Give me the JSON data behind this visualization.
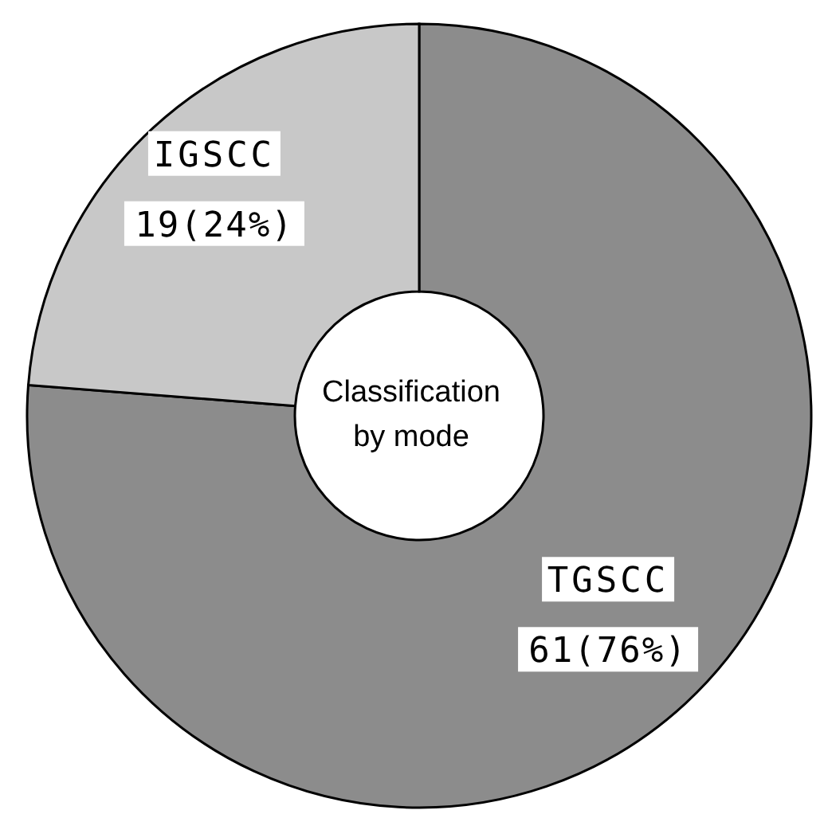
{
  "chart_data": {
    "type": "donut",
    "title": "Classification by mode",
    "categories": [
      "TGSCC",
      "IGSCC"
    ],
    "values": [
      61,
      19
    ],
    "value_labels": [
      "61(76%)",
      "19(24%)"
    ],
    "colors": [
      "#8c8c8c",
      "#c8c8c8"
    ],
    "legend": false
  }
}
